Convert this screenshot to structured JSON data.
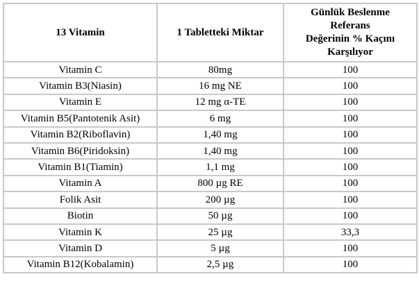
{
  "table": {
    "columns": [
      {
        "label": "13 Vitamin"
      },
      {
        "label": "1 Tabletteki Miktar"
      },
      {
        "label": "Günlük Beslenme\nReferans\nDeğerinin % Kaçını\nKarşılıyor"
      }
    ],
    "rows": [
      [
        "Vitamin C",
        "80mg",
        "100"
      ],
      [
        "Vitamin B3(Niasin)",
        "16 mg NE",
        "100"
      ],
      [
        "Vitamin E",
        "12 mg α-TE",
        "100"
      ],
      [
        "Vitamin B5(Pantotenik Asit)",
        "6 mg",
        "100"
      ],
      [
        "Vitamin B2(Riboflavin)",
        "1,40 mg",
        "100"
      ],
      [
        "Vitamin B6(Piridoksin)",
        "1,40 mg",
        "100"
      ],
      [
        "Vitamin B1(Tiamin)",
        "1,1 mg",
        "100"
      ],
      [
        "Vitamin A",
        "800 µg RE",
        "100"
      ],
      [
        "Folik Asit",
        "200 µg",
        "100"
      ],
      [
        "Biotin",
        "50 µg",
        "100"
      ],
      [
        "Vitamin K",
        "25 µg",
        "33,3"
      ],
      [
        "Vitamin D",
        "5 µg",
        "100"
      ],
      [
        "Vitamin B12(Kobalamin)",
        "2,5 µg",
        "100"
      ]
    ],
    "colors": {
      "border": "#c8c8c8",
      "text": "#000000",
      "background": "#ffffff"
    }
  }
}
